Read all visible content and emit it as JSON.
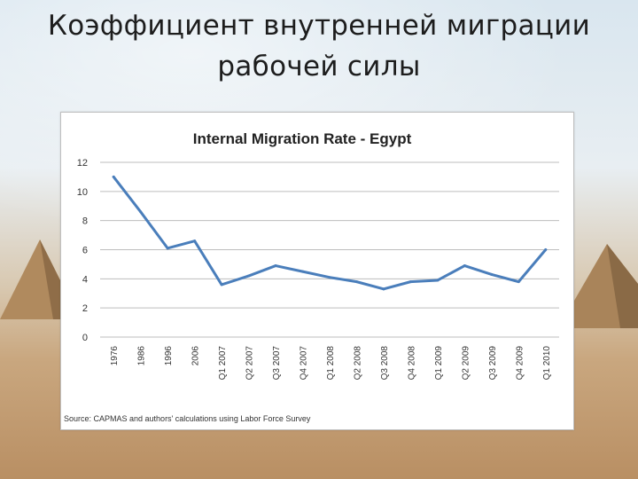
{
  "slide": {
    "title_line1": "Коэффициент внутренней миграции",
    "title_line2": "рабочей силы"
  },
  "chart_data": {
    "type": "line",
    "title": "Internal Migration Rate  - Egypt",
    "xlabel": "",
    "ylabel": "",
    "ylim": [
      0,
      12
    ],
    "yticks": [
      0,
      2,
      4,
      6,
      8,
      10,
      12
    ],
    "grid": true,
    "legend": "none",
    "series_color": "#4a7ebb",
    "categories": [
      "1976",
      "1986",
      "1996",
      "2006",
      "Q1 2007",
      "Q2 2007",
      "Q3 2007",
      "Q4 2007",
      "Q1 2008",
      "Q2 2008",
      "Q3 2008",
      "Q4 2008",
      "Q1 2009",
      "Q2 2009",
      "Q3 2009",
      "Q4 2009",
      "Q1 2010"
    ],
    "series": [
      {
        "values": [
          11.0,
          8.6,
          6.1,
          6.6,
          3.6,
          4.2,
          4.9,
          4.5,
          4.1,
          3.8,
          3.3,
          3.8,
          3.9,
          4.9,
          4.3,
          3.8,
          6.0
        ]
      }
    ],
    "source": "Source: CAPMAS and authors' calculations using Labor Force Survey"
  }
}
